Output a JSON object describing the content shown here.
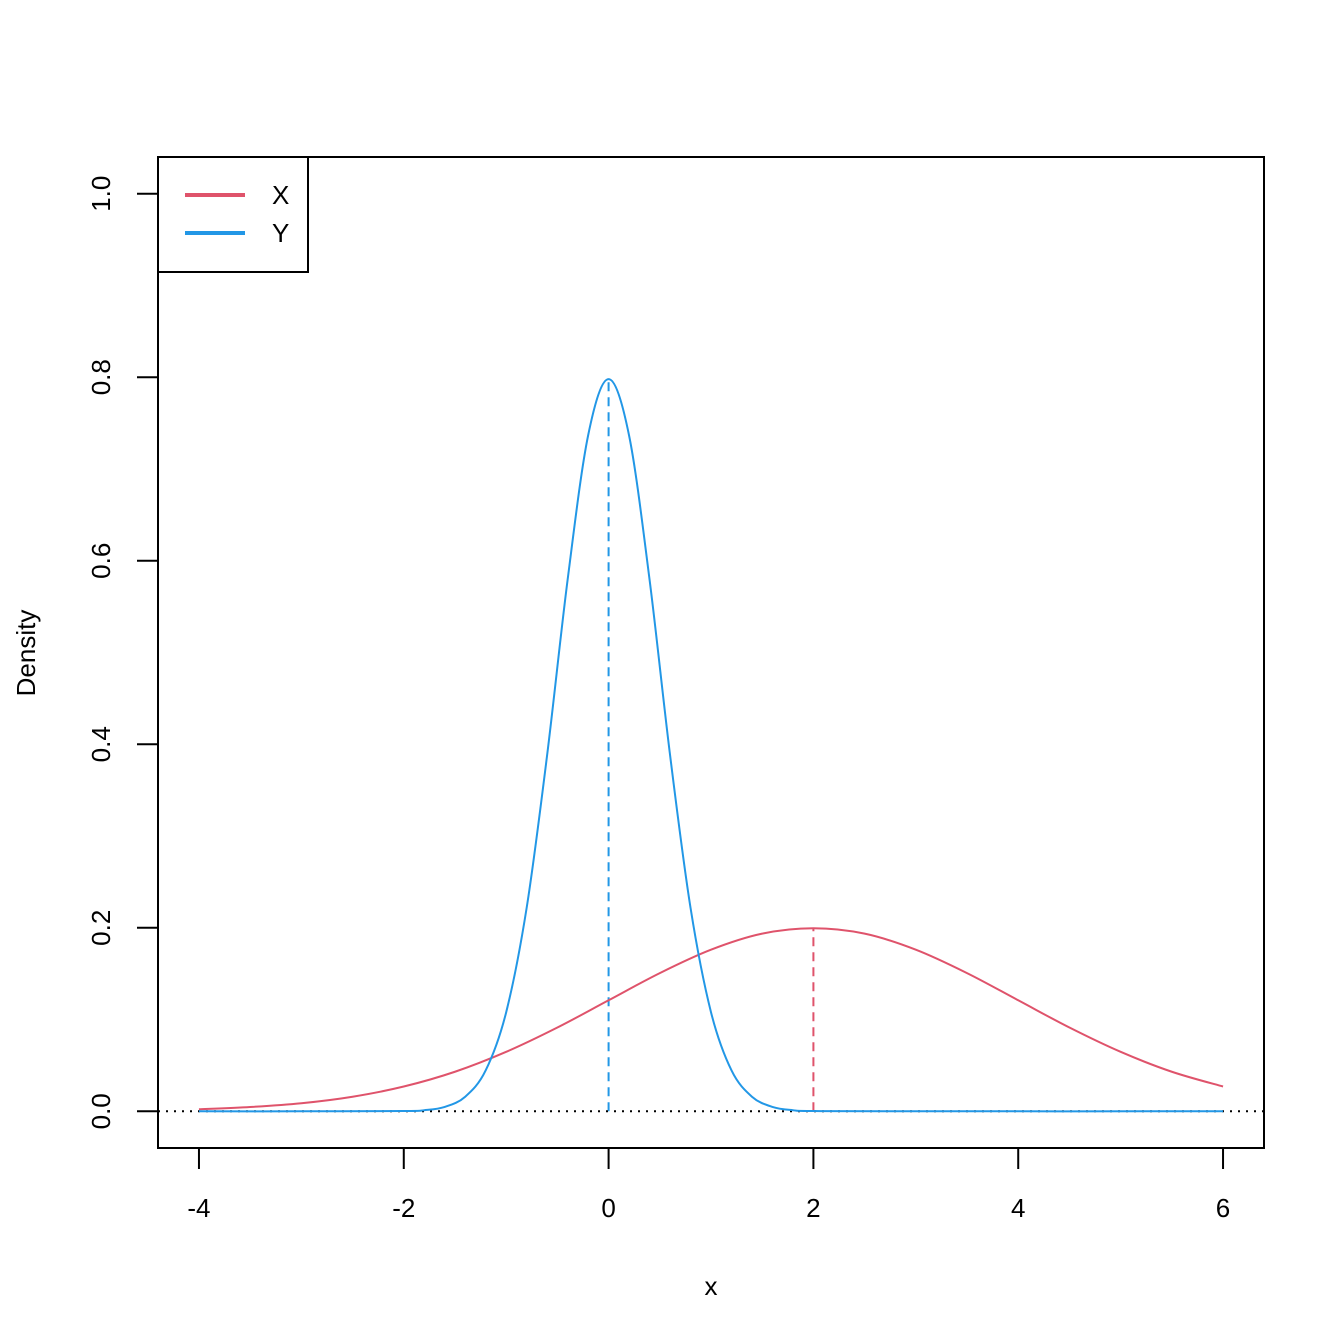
{
  "chart_data": {
    "type": "line",
    "title": "",
    "xlabel": "x",
    "ylabel": "Density",
    "xlim": [
      -4.4,
      6.4
    ],
    "ylim": [
      -0.04,
      1.04
    ],
    "x_ticks": [
      "-4",
      "-2",
      "0",
      "2",
      "4",
      "6"
    ],
    "y_ticks": [
      "0.0",
      "0.2",
      "0.4",
      "0.6",
      "0.8",
      "1.0"
    ],
    "grid": false,
    "legend": {
      "position": "top-left",
      "entries": [
        {
          "label": "X",
          "color": "#DF536B"
        },
        {
          "label": "Y",
          "color": "#2297E6"
        }
      ]
    },
    "series": [
      {
        "name": "X",
        "color": "#DF536B",
        "x": [
          -4,
          -3.5,
          -3,
          -2.5,
          -2,
          -1.5,
          -1,
          -0.5,
          0,
          0.5,
          1,
          1.5,
          2,
          2.5,
          3,
          3.5,
          4,
          4.5,
          5,
          5.5,
          6
        ],
        "y": [
          0.0022,
          0.0047,
          0.0088,
          0.0159,
          0.027,
          0.0431,
          0.0648,
          0.0913,
          0.121,
          0.1506,
          0.1761,
          0.1936,
          0.1995,
          0.1936,
          0.1761,
          0.1506,
          0.121,
          0.0913,
          0.0648,
          0.0431,
          0.027
        ]
      },
      {
        "name": "Y",
        "color": "#2297E6",
        "x": [
          -4,
          -3,
          -2,
          -1.8,
          -1.6,
          -1.4,
          -1.2,
          -1,
          -0.8,
          -0.6,
          -0.4,
          -0.2,
          0,
          0.2,
          0.4,
          0.6,
          0.8,
          1,
          1.2,
          1.4,
          1.6,
          1.8,
          2,
          3,
          6
        ],
        "y": [
          0,
          0,
          0.0003,
          0.0012,
          0.0048,
          0.0159,
          0.0446,
          0.108,
          0.2218,
          0.3884,
          0.5794,
          0.7365,
          0.7979,
          0.7365,
          0.5794,
          0.3884,
          0.2218,
          0.108,
          0.0446,
          0.0159,
          0.0048,
          0.0012,
          0.0003,
          0,
          0
        ]
      }
    ],
    "annotations": [
      {
        "kind": "vertical-dashed",
        "x": 0,
        "y_top": 0.7979,
        "color": "#2297E6"
      },
      {
        "kind": "vertical-dashed",
        "x": 2,
        "y_top": 0.1995,
        "color": "#DF536B"
      },
      {
        "kind": "horizontal-dotted",
        "y": 0,
        "color": "#000000"
      }
    ]
  }
}
